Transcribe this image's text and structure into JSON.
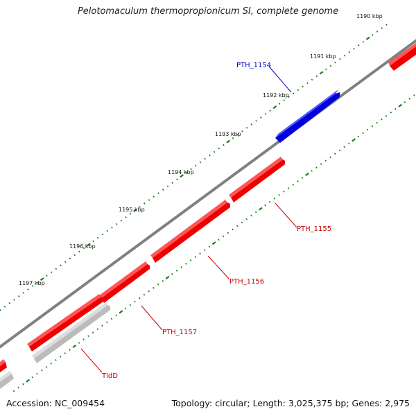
{
  "title": "Pelotomaculum thermopropionicum SI, complete genome",
  "footer": {
    "accession": "Accession: NC_009454",
    "summary": "Topology: circular; Length: 3,025,375 bp; Genes: 2,975"
  },
  "colors": {
    "backbone": "#808080",
    "forward_gene": "#0000dd",
    "reverse_gene": "#ee0000",
    "rna_gene": "#bbbbbb",
    "tick": "#1a7a1a",
    "forward_label": "#0000cc",
    "reverse_label": "#cc0000",
    "rna_label": "#cc0000"
  },
  "ruler_labels": [
    {
      "kbp": 1190,
      "text": "1190 kbp"
    },
    {
      "kbp": 1191,
      "text": "1191 kbp"
    },
    {
      "kbp": 1192,
      "text": "1192 kbp"
    },
    {
      "kbp": 1193,
      "text": "1193 kbp"
    },
    {
      "kbp": 1194,
      "text": "1194 kbp"
    },
    {
      "kbp": 1195,
      "text": "1195 kbp"
    },
    {
      "kbp": 1196,
      "text": "1196 kbp"
    },
    {
      "kbp": 1197,
      "text": "1197 kbp"
    }
  ],
  "genes": [
    {
      "name": "PTH_1154",
      "strand": "forward",
      "type": "gene"
    },
    {
      "name": "PTH_1155",
      "strand": "reverse",
      "type": "gene"
    },
    {
      "name": "PTH_1156",
      "strand": "reverse",
      "type": "gene"
    },
    {
      "name": "PTH_1157",
      "strand": "reverse",
      "type": "gene"
    },
    {
      "name": "TldD",
      "strand": "reverse",
      "type": "rna"
    }
  ]
}
